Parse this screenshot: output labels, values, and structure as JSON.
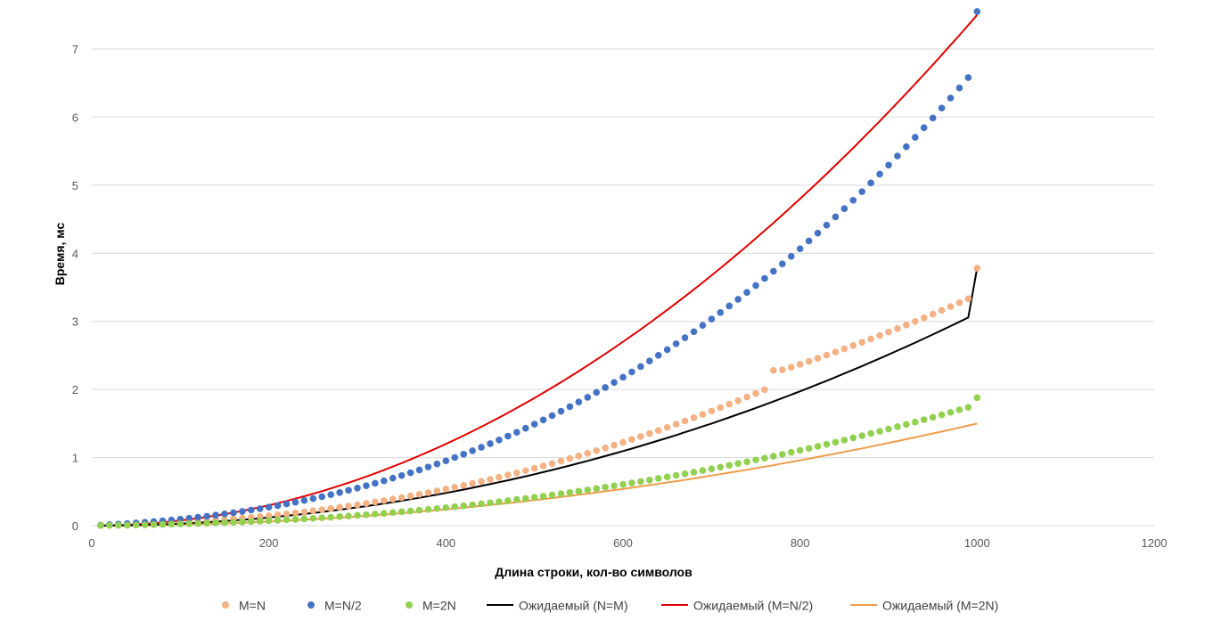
{
  "chart_data": {
    "type": "scatter",
    "title": "",
    "xlabel": "Длина строки, кол-во символов",
    "ylabel": "Время, мс",
    "xlim": [
      0,
      1200
    ],
    "ylim": [
      0,
      7.5
    ],
    "xticks": [
      0,
      200,
      400,
      600,
      800,
      1000,
      1200
    ],
    "yticks": [
      0,
      1,
      2,
      3,
      4,
      5,
      6,
      7
    ],
    "grid": "horizontal",
    "legend": "bottom",
    "x": [
      10,
      20,
      30,
      40,
      50,
      60,
      70,
      80,
      90,
      100,
      110,
      120,
      130,
      140,
      150,
      160,
      170,
      180,
      190,
      200,
      210,
      220,
      230,
      240,
      250,
      260,
      270,
      280,
      290,
      300,
      310,
      320,
      330,
      340,
      350,
      360,
      370,
      380,
      390,
      400,
      410,
      420,
      430,
      440,
      450,
      460,
      470,
      480,
      490,
      500,
      510,
      520,
      530,
      540,
      550,
      560,
      570,
      580,
      590,
      600,
      610,
      620,
      630,
      640,
      650,
      660,
      670,
      680,
      690,
      700,
      710,
      720,
      730,
      740,
      750,
      760,
      770,
      780,
      790,
      800,
      810,
      820,
      830,
      840,
      850,
      860,
      870,
      880,
      890,
      900,
      910,
      920,
      930,
      940,
      950,
      960,
      970,
      980,
      990,
      1000
    ],
    "series": [
      {
        "name": "M=N",
        "kind": "points",
        "color": "#f4b183",
        "values": [
          0.004,
          0.008,
          0.012,
          0.017,
          0.021,
          0.026,
          0.031,
          0.037,
          0.043,
          0.05,
          0.057,
          0.065,
          0.073,
          0.082,
          0.091,
          0.101,
          0.111,
          0.122,
          0.134,
          0.146,
          0.159,
          0.173,
          0.187,
          0.202,
          0.218,
          0.234,
          0.251,
          0.269,
          0.287,
          0.306,
          0.326,
          0.347,
          0.368,
          0.39,
          0.413,
          0.436,
          0.46,
          0.485,
          0.511,
          0.537,
          0.564,
          0.592,
          0.621,
          0.65,
          0.68,
          0.711,
          0.743,
          0.775,
          0.808,
          0.842,
          0.877,
          0.912,
          0.949,
          0.986,
          1.023,
          1.062,
          1.101,
          1.141,
          1.182,
          1.224,
          1.266,
          1.309,
          1.353,
          1.398,
          1.444,
          1.49,
          1.537,
          1.585,
          1.634,
          1.683,
          1.734,
          1.785,
          1.836,
          1.889,
          1.942,
          1.997,
          2.28,
          2.288,
          2.326,
          2.369,
          2.413,
          2.458,
          2.504,
          2.55,
          2.597,
          2.645,
          2.693,
          2.742,
          2.792,
          2.843,
          2.894,
          2.946,
          2.999,
          3.053,
          3.107,
          3.162,
          3.218,
          3.275,
          3.332,
          3.78
        ]
      },
      {
        "name": "M=N/2",
        "kind": "points",
        "color": "#4472c4",
        "values": [
          0.008,
          0.015,
          0.023,
          0.031,
          0.04,
          0.05,
          0.06,
          0.071,
          0.083,
          0.096,
          0.109,
          0.124,
          0.139,
          0.155,
          0.172,
          0.19,
          0.209,
          0.229,
          0.25,
          0.272,
          0.295,
          0.319,
          0.344,
          0.371,
          0.398,
          0.426,
          0.456,
          0.487,
          0.519,
          0.552,
          0.586,
          0.622,
          0.659,
          0.697,
          0.736,
          0.777,
          0.819,
          0.862,
          0.907,
          0.953,
          1.001,
          1.049,
          1.1,
          1.151,
          1.204,
          1.259,
          1.315,
          1.372,
          1.431,
          1.491,
          1.553,
          1.616,
          1.681,
          1.748,
          1.816,
          1.885,
          1.957,
          2.029,
          2.104,
          2.18,
          2.258,
          2.337,
          2.418,
          2.501,
          2.585,
          2.672,
          2.76,
          2.849,
          2.941,
          3.034,
          3.129,
          3.226,
          3.324,
          3.425,
          3.527,
          3.631,
          3.737,
          3.845,
          3.955,
          4.067,
          4.181,
          4.296,
          4.414,
          4.534,
          4.655,
          4.779,
          4.905,
          5.033,
          5.163,
          5.295,
          5.429,
          5.565,
          5.704,
          5.844,
          5.987,
          6.132,
          6.279,
          6.429,
          6.58,
          7.55
        ]
      },
      {
        "name": "M=2N",
        "kind": "points",
        "color": "#92d050",
        "values": [
          0.002,
          0.004,
          0.006,
          0.008,
          0.011,
          0.013,
          0.016,
          0.019,
          0.022,
          0.025,
          0.029,
          0.032,
          0.036,
          0.041,
          0.045,
          0.05,
          0.055,
          0.061,
          0.067,
          0.073,
          0.079,
          0.086,
          0.093,
          0.1,
          0.108,
          0.116,
          0.124,
          0.133,
          0.142,
          0.151,
          0.161,
          0.171,
          0.181,
          0.192,
          0.203,
          0.215,
          0.227,
          0.239,
          0.252,
          0.265,
          0.278,
          0.292,
          0.306,
          0.321,
          0.336,
          0.351,
          0.367,
          0.383,
          0.399,
          0.416,
          0.433,
          0.451,
          0.469,
          0.487,
          0.506,
          0.525,
          0.545,
          0.565,
          0.585,
          0.606,
          0.627,
          0.648,
          0.67,
          0.692,
          0.715,
          0.738,
          0.762,
          0.786,
          0.81,
          0.835,
          0.86,
          0.886,
          0.912,
          0.938,
          0.965,
          0.992,
          1.02,
          1.048,
          1.077,
          1.106,
          1.135,
          1.165,
          1.195,
          1.226,
          1.257,
          1.289,
          1.321,
          1.353,
          1.386,
          1.419,
          1.453,
          1.487,
          1.522,
          1.557,
          1.592,
          1.628,
          1.664,
          1.701,
          1.738,
          1.88
        ]
      },
      {
        "name": "Ожидаемый (N=M)",
        "kind": "line",
        "color": "#000000",
        "values": [
          0.0,
          0.001,
          0.003,
          0.005,
          0.008,
          0.011,
          0.015,
          0.02,
          0.025,
          0.031,
          0.037,
          0.044,
          0.051,
          0.059,
          0.068,
          0.077,
          0.087,
          0.097,
          0.108,
          0.12,
          0.132,
          0.145,
          0.158,
          0.172,
          0.187,
          0.202,
          0.218,
          0.234,
          0.251,
          0.269,
          0.287,
          0.306,
          0.326,
          0.346,
          0.367,
          0.388,
          0.41,
          0.433,
          0.457,
          0.48,
          0.505,
          0.53,
          0.556,
          0.583,
          0.61,
          0.638,
          0.666,
          0.695,
          0.725,
          0.755,
          0.786,
          0.818,
          0.85,
          0.883,
          0.917,
          0.951,
          0.986,
          1.022,
          1.058,
          1.095,
          1.132,
          1.171,
          1.21,
          1.249,
          1.289,
          1.33,
          1.372,
          1.414,
          1.457,
          1.5,
          1.545,
          1.59,
          1.635,
          1.681,
          1.728,
          1.776,
          1.824,
          1.873,
          1.923,
          1.973,
          2.024,
          2.076,
          2.128,
          2.181,
          2.235,
          2.289,
          2.344,
          2.4,
          2.456,
          2.513,
          2.571,
          2.629,
          2.688,
          2.748,
          2.808,
          2.869,
          2.931,
          2.993,
          3.056,
          3.78
        ]
      },
      {
        "name": "Ожидаемый (M=N/2)",
        "kind": "line",
        "color": "#e00000",
        "values": [
          0.001,
          0.003,
          0.007,
          0.012,
          0.019,
          0.027,
          0.037,
          0.048,
          0.061,
          0.075,
          0.091,
          0.108,
          0.127,
          0.147,
          0.169,
          0.192,
          0.217,
          0.243,
          0.271,
          0.3,
          0.331,
          0.363,
          0.397,
          0.432,
          0.469,
          0.507,
          0.547,
          0.588,
          0.631,
          0.675,
          0.721,
          0.768,
          0.817,
          0.867,
          0.919,
          0.972,
          1.027,
          1.083,
          1.141,
          1.2,
          1.261,
          1.323,
          1.387,
          1.452,
          1.519,
          1.587,
          1.657,
          1.728,
          1.801,
          1.875,
          1.951,
          2.028,
          2.107,
          2.187,
          2.269,
          2.352,
          2.437,
          2.523,
          2.611,
          2.7,
          2.791,
          2.883,
          2.977,
          3.072,
          3.169,
          3.267,
          3.367,
          3.468,
          3.571,
          3.675,
          3.781,
          3.888,
          3.997,
          4.107,
          4.219,
          4.332,
          4.447,
          4.563,
          4.681,
          4.8,
          4.921,
          5.043,
          5.167,
          5.292,
          5.419,
          5.547,
          5.677,
          5.808,
          5.941,
          6.075,
          6.211,
          6.348,
          6.487,
          6.627,
          6.769,
          6.912,
          7.057,
          7.203,
          7.351,
          7.5
        ]
      },
      {
        "name": "Ожидаемый (M=2N)",
        "kind": "line",
        "color": "#ed9d4a",
        "values": [
          0.0,
          0.001,
          0.002,
          0.003,
          0.004,
          0.006,
          0.008,
          0.01,
          0.012,
          0.015,
          0.018,
          0.022,
          0.025,
          0.029,
          0.034,
          0.038,
          0.043,
          0.049,
          0.054,
          0.06,
          0.066,
          0.073,
          0.079,
          0.086,
          0.094,
          0.101,
          0.109,
          0.118,
          0.126,
          0.135,
          0.144,
          0.154,
          0.163,
          0.173,
          0.184,
          0.194,
          0.205,
          0.217,
          0.228,
          0.24,
          0.252,
          0.265,
          0.277,
          0.29,
          0.304,
          0.317,
          0.331,
          0.346,
          0.36,
          0.375,
          0.39,
          0.406,
          0.421,
          0.437,
          0.454,
          0.47,
          0.487,
          0.505,
          0.522,
          0.54,
          0.558,
          0.577,
          0.595,
          0.614,
          0.634,
          0.653,
          0.673,
          0.694,
          0.714,
          0.735,
          0.756,
          0.778,
          0.799,
          0.821,
          0.844,
          0.866,
          0.889,
          0.913,
          0.936,
          0.96,
          0.984,
          1.009,
          1.033,
          1.058,
          1.084,
          1.109,
          1.135,
          1.162,
          1.188,
          1.215,
          1.242,
          1.27,
          1.297,
          1.325,
          1.354,
          1.382,
          1.411,
          1.441,
          1.47,
          1.5
        ]
      }
    ]
  }
}
